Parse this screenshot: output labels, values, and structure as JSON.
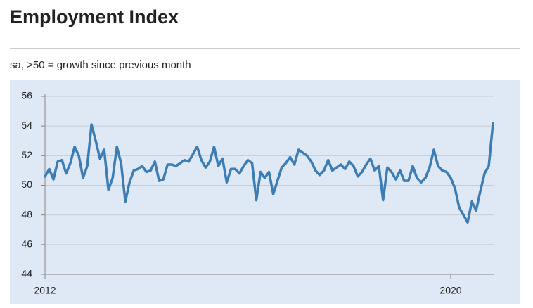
{
  "chart_data": {
    "type": "line",
    "title": "Employment Index",
    "subtitle": "sa, >50 = growth since previous month",
    "categories": [
      "2012",
      null,
      null,
      null,
      null,
      null,
      null,
      null,
      null,
      null,
      null,
      null,
      null,
      null,
      null,
      null,
      null,
      null,
      null,
      null,
      null,
      null,
      null,
      null,
      null,
      null,
      null,
      null,
      null,
      null,
      null,
      null,
      null,
      null,
      null,
      null,
      null,
      null,
      null,
      null,
      null,
      null,
      null,
      null,
      null,
      null,
      null,
      null,
      null,
      null,
      null,
      null,
      null,
      null,
      null,
      null,
      null,
      null,
      null,
      null,
      null,
      null,
      null,
      null,
      null,
      null,
      null,
      null,
      null,
      null,
      null,
      null,
      null,
      null,
      null,
      null,
      null,
      null,
      null,
      null,
      null,
      null,
      null,
      null,
      null,
      null,
      null,
      null,
      null,
      null,
      null,
      null,
      null,
      null,
      null,
      null,
      "2020",
      null,
      null,
      null,
      null,
      null,
      null,
      null,
      null,
      null,
      null
    ],
    "series": [
      {
        "color": "#3d7db5",
        "values": [
          50.6,
          51.1,
          50.4,
          51.6,
          51.7,
          50.8,
          51.5,
          52.6,
          52.0,
          50.5,
          51.3,
          54.1,
          53.0,
          51.8,
          52.4,
          49.7,
          50.5,
          52.6,
          51.5,
          48.9,
          50.2,
          51.0,
          51.1,
          51.3,
          50.9,
          51.0,
          51.6,
          50.3,
          50.4,
          51.4,
          51.4,
          51.3,
          51.5,
          51.7,
          51.6,
          52.1,
          52.6,
          51.7,
          51.2,
          51.6,
          52.6,
          51.3,
          51.8,
          50.2,
          51.1,
          51.1,
          50.8,
          51.3,
          51.7,
          51.5,
          49.0,
          50.9,
          50.5,
          50.9,
          49.4,
          50.3,
          51.2,
          51.5,
          51.9,
          51.4,
          52.4,
          52.2,
          52.0,
          51.6,
          51.0,
          50.7,
          51.0,
          51.7,
          51.0,
          51.2,
          51.4,
          51.1,
          51.6,
          51.3,
          50.6,
          50.9,
          51.4,
          51.8,
          51.0,
          51.3,
          49.0,
          51.2,
          50.9,
          50.4,
          51.0,
          50.3,
          50.3,
          51.3,
          50.5,
          50.2,
          50.5,
          51.2,
          52.4,
          51.3,
          51.0,
          50.9,
          50.5,
          49.8,
          48.5,
          48.0,
          47.5,
          48.9,
          48.3,
          49.6,
          50.8,
          51.3,
          54.2
        ]
      }
    ],
    "ylim": [
      44,
      56
    ],
    "yticks": [
      44,
      46,
      48,
      50,
      52,
      54,
      56
    ],
    "grid": true
  }
}
